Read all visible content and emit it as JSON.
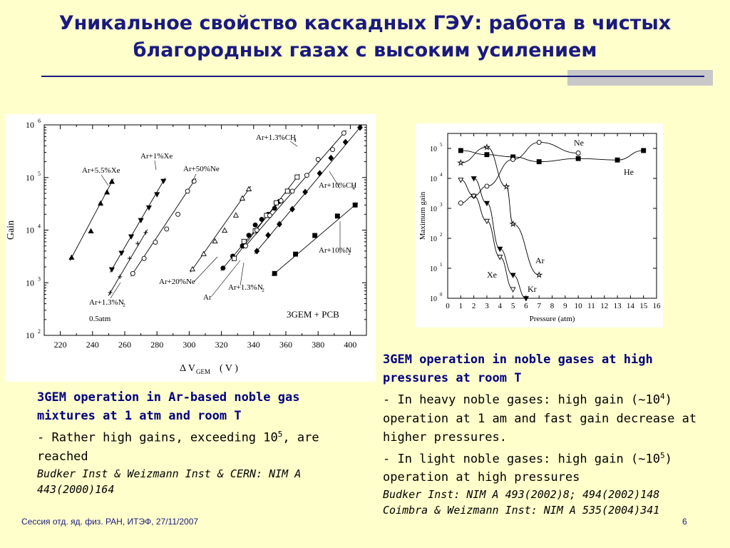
{
  "title_line1": "Уникальное свойство каскадных ГЭУ: работа в чистых",
  "title_line2": "благородных газах с высоким усилением",
  "left_caption": {
    "heading": "3GEM operation in Ar-based noble gas mixtures at 1 atm and room T",
    "text_pre": "- Rather high gains, exceeding 10",
    "text_sup": "5",
    "text_post": ", are reached",
    "ref": "Budker Inst & Weizmann Inst & CERN: NIM A 443(2000)164"
  },
  "right_caption": {
    "heading": "3GEM operation in noble gases at high pressures at room T",
    "b1_pre": "- In heavy noble gases: high gain (~10",
    "b1_sup": "4",
    "b1_post": ") operation at 1 am and fast gain decrease at higher pressures.",
    "b2_pre": "- In light noble gases: high gain (~10",
    "b2_sup": "5",
    "b2_post": ") operation at high pressures",
    "ref1": "Budker Inst: NIM A 493(2002)8; 494(2002)148",
    "ref2": "Coimbra & Weizmann Inst: NIM A 535(2004)341"
  },
  "footer": "Сессия отд. яд. физ. РАН, ИТЭФ, 27/11/2007",
  "page_number": "6",
  "colors": {
    "title": "#1a1a80",
    "background": "#ffffcc"
  },
  "chart_data": [
    {
      "type": "scatter",
      "ylabel": "Gain",
      "xlabel_main": "Δ V",
      "xlabel_sub": "GEM",
      "xlabel_unit": "( V )",
      "xlim": [
        210,
        410
      ],
      "ylim": [
        100,
        1000000
      ],
      "yscale": "log",
      "xticks": [
        220,
        240,
        260,
        280,
        300,
        320,
        340,
        360,
        380,
        400
      ],
      "yticks": [
        {
          "v": 100,
          "b": "10",
          "e": "2"
        },
        {
          "v": 1000,
          "b": "10",
          "e": "3"
        },
        {
          "v": 10000,
          "b": "10",
          "e": "4"
        },
        {
          "v": 100000,
          "b": "10",
          "e": "5"
        },
        {
          "v": 1000000,
          "b": "10",
          "e": "6"
        }
      ],
      "annotation": "3GEM + PCB",
      "pressure_note": "0.5atm",
      "series": [
        {
          "name": "Ar+5.5%Xe",
          "sub": "",
          "marker": "tri-up",
          "filled": true,
          "x": [
            227,
            239,
            245,
            249,
            252
          ],
          "y": [
            3000,
            9500,
            32000,
            52000,
            83000
          ]
        },
        {
          "name": "Ar+1%Xe",
          "sub": "",
          "marker": "tri-down",
          "filled": true,
          "x": [
            252,
            258,
            264,
            270,
            275,
            280,
            284
          ],
          "y": [
            1800,
            3700,
            7600,
            15500,
            27000,
            48000,
            86000
          ]
        },
        {
          "name": "Ar+1.3%N",
          "sub": "2",
          "marker": "plus",
          "filled": false,
          "x": [
            251,
            257,
            263,
            268,
            273
          ],
          "y": [
            650,
            1300,
            2900,
            5600,
            9000
          ]
        },
        {
          "name": "Ar+50%Ne",
          "sub": "",
          "marker": "circle",
          "filled": false,
          "x": [
            265,
            272,
            279,
            286,
            293,
            299,
            303
          ],
          "y": [
            1500,
            2900,
            5900,
            10500,
            20000,
            55000,
            85000
          ]
        },
        {
          "name": "Ar+20%Ne",
          "sub": "",
          "marker": "tri-up",
          "filled": false,
          "x": [
            302,
            309,
            316,
            322,
            329,
            333,
            337
          ],
          "y": [
            1800,
            3500,
            6100,
            9800,
            19000,
            40000,
            60000
          ]
        },
        {
          "name": "Ar",
          "sub": "",
          "marker": "circle",
          "filled": true,
          "x": [
            321,
            327,
            333,
            337,
            341,
            345,
            349,
            353,
            356
          ],
          "y": [
            1900,
            3200,
            5000,
            8000,
            12500,
            16000,
            20000,
            26000,
            35000
          ]
        },
        {
          "name": "Ar+1.3%N",
          "sub": "2",
          "marker": "square",
          "filled": false,
          "x": [
            328,
            334,
            341,
            348,
            354,
            361,
            367
          ],
          "y": [
            2900,
            6100,
            9700,
            19000,
            33000,
            55000,
            102000
          ]
        },
        {
          "name": "Ar+1.3%CH",
          "sub": "4",
          "marker": "circle",
          "filled": false,
          "x": [
            335,
            342,
            350,
            357,
            364,
            373,
            380,
            389,
            396
          ],
          "y": [
            5000,
            10000,
            19000,
            36000,
            55000,
            110000,
            220000,
            340000,
            700000
          ]
        },
        {
          "name": "Ar+10%CH",
          "sub": "4",
          "marker": "diamond",
          "filled": true,
          "x": [
            342,
            349,
            356,
            364,
            372,
            381,
            388,
            397,
            406
          ],
          "y": [
            4000,
            8000,
            13000,
            25000,
            53000,
            120000,
            235000,
            470000,
            890000
          ]
        },
        {
          "name": "Ar+10%N",
          "sub": "2",
          "marker": "square",
          "filled": true,
          "x": [
            353,
            366,
            378,
            392,
            403
          ],
          "y": [
            1500,
            3500,
            7900,
            18500,
            30000
          ]
        }
      ]
    },
    {
      "type": "line",
      "ylabel": "Maximum gain",
      "xlabel": "Pressure (atm)",
      "xlim": [
        0,
        16
      ],
      "ylim": [
        1,
        316228
      ],
      "yscale": "log",
      "xticks": [
        0,
        1,
        2,
        3,
        4,
        5,
        6,
        7,
        8,
        9,
        10,
        11,
        12,
        13,
        14,
        15,
        16
      ],
      "yticks": [
        {
          "v": 1,
          "b": "10",
          "e": "0"
        },
        {
          "v": 10,
          "b": "10",
          "e": "1"
        },
        {
          "v": 100,
          "b": "10",
          "e": "2"
        },
        {
          "v": 1000,
          "b": "10",
          "e": "3"
        },
        {
          "v": 10000,
          "b": "10",
          "e": "4"
        },
        {
          "v": 100000,
          "b": "10",
          "e": "5"
        }
      ],
      "series": [
        {
          "name": "He",
          "marker": "square",
          "filled": true,
          "x": [
            1,
            3,
            5,
            7,
            10,
            13,
            15
          ],
          "y": [
            85000,
            62000,
            52000,
            36000,
            46000,
            41000,
            85000
          ]
        },
        {
          "name": "Ne",
          "marker": "circle",
          "filled": false,
          "x": [
            1,
            2,
            3,
            5,
            7,
            10
          ],
          "y": [
            1500,
            2600,
            5500,
            43000,
            160000,
            70000
          ]
        },
        {
          "name": "Ar",
          "marker": "star",
          "filled": false,
          "x": [
            1,
            3,
            4.5,
            5,
            7
          ],
          "y": [
            33000,
            110000,
            5300,
            300,
            6
          ]
        },
        {
          "name": "Xe",
          "marker": "tri-down",
          "filled": true,
          "x": [
            2,
            3,
            4,
            5,
            6
          ],
          "y": [
            10000,
            1500,
            45,
            6,
            1
          ]
        },
        {
          "name": "Kr",
          "marker": "tri-down",
          "filled": false,
          "x": [
            1,
            2,
            3,
            4,
            5
          ],
          "y": [
            9000,
            2600,
            380,
            24,
            2
          ]
        }
      ]
    }
  ]
}
